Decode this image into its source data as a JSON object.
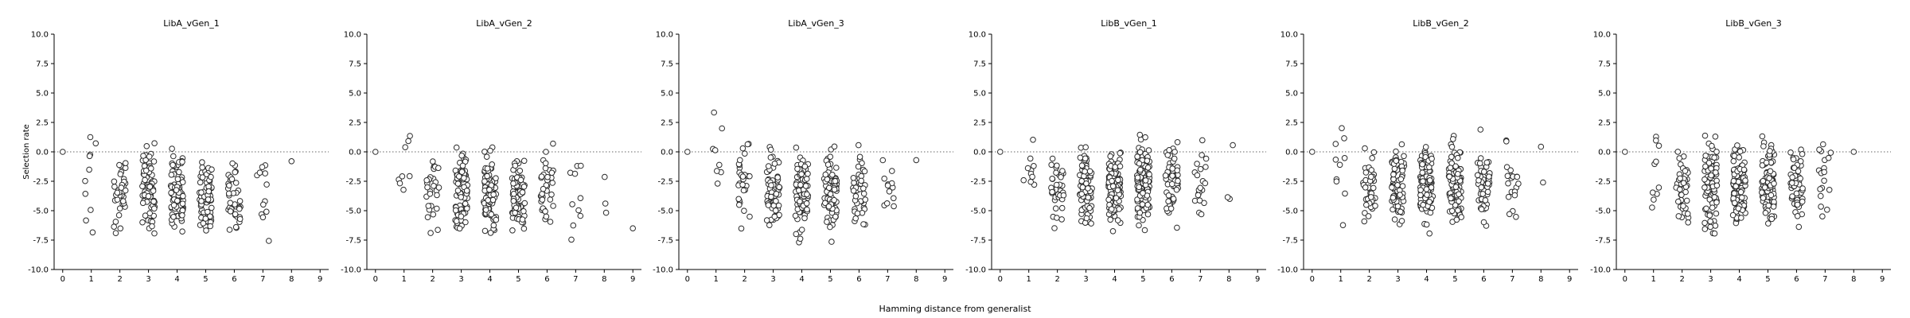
{
  "figure": {
    "xlabel": "Hamming distance from generalist",
    "ylabel": "Selection rate"
  },
  "chart_data": [
    {
      "type": "scatter",
      "title": "LibA_vGen_1",
      "xlim": [
        -0.3,
        9.3
      ],
      "ylim": [
        -10,
        10
      ],
      "xticks": [
        "0",
        "1",
        "2",
        "3",
        "4",
        "5",
        "6",
        "7",
        "8",
        "9"
      ],
      "yticks": [
        "10.0",
        "7.5",
        "5.0",
        "2.5",
        "0.0",
        "-2.5",
        "-5.0",
        "-7.5",
        "-10.0"
      ],
      "reference_line_y": 0,
      "jitter": 0.22,
      "groups": [
        {
          "x": 0,
          "n": 1,
          "y_center": 0.0,
          "y_spread": 0.0
        },
        {
          "x": 1,
          "n": 10,
          "y_center": -2.5,
          "y_spread": 3.8
        },
        {
          "x": 2,
          "n": 35,
          "y_center": -3.5,
          "y_spread": 2.4
        },
        {
          "x": 3,
          "n": 75,
          "y_center": -3.2,
          "y_spread": 2.6
        },
        {
          "x": 4,
          "n": 95,
          "y_center": -3.5,
          "y_spread": 2.5
        },
        {
          "x": 5,
          "n": 80,
          "y_center": -4.0,
          "y_spread": 2.4
        },
        {
          "x": 6,
          "n": 40,
          "y_center": -4.0,
          "y_spread": 2.6
        },
        {
          "x": 7,
          "n": 12,
          "y_center": -3.5,
          "y_spread": 3.0
        },
        {
          "x": 8,
          "n": 1,
          "y_center": -0.8,
          "y_spread": 0.0
        }
      ]
    },
    {
      "type": "scatter",
      "title": "LibA_vGen_2",
      "xlim": [
        -0.3,
        9.3
      ],
      "ylim": [
        -10,
        10
      ],
      "xticks": [
        "0",
        "1",
        "2",
        "3",
        "4",
        "5",
        "6",
        "7",
        "8",
        "9"
      ],
      "yticks": [
        "10.0",
        "7.5",
        "5.0",
        "2.5",
        "0.0",
        "-2.5",
        "-5.0",
        "-7.5",
        "-10.0"
      ],
      "reference_line_y": 0,
      "jitter": 0.22,
      "groups": [
        {
          "x": 0,
          "n": 1,
          "y_center": 0.0,
          "y_spread": 0.0
        },
        {
          "x": 1,
          "n": 8,
          "y_center": -1.5,
          "y_spread": 3.6
        },
        {
          "x": 2,
          "n": 30,
          "y_center": -3.5,
          "y_spread": 2.5
        },
        {
          "x": 3,
          "n": 80,
          "y_center": -3.4,
          "y_spread": 2.6
        },
        {
          "x": 4,
          "n": 95,
          "y_center": -3.6,
          "y_spread": 2.5
        },
        {
          "x": 5,
          "n": 70,
          "y_center": -3.8,
          "y_spread": 2.4
        },
        {
          "x": 6,
          "n": 35,
          "y_center": -3.2,
          "y_spread": 2.6
        },
        {
          "x": 7,
          "n": 10,
          "y_center": -3.5,
          "y_spread": 3.0
        },
        {
          "x": 8,
          "n": 3,
          "y_center": -3.0,
          "y_spread": 2.5
        },
        {
          "x": 9,
          "n": 1,
          "y_center": -6.5,
          "y_spread": 0.0
        }
      ]
    },
    {
      "type": "scatter",
      "title": "LibA_vGen_3",
      "xlim": [
        -0.3,
        9.3
      ],
      "ylim": [
        -10,
        10
      ],
      "xticks": [
        "0",
        "1",
        "2",
        "3",
        "4",
        "5",
        "6",
        "7",
        "8",
        "9"
      ],
      "yticks": [
        "10.0",
        "7.5",
        "5.0",
        "2.5",
        "0.0",
        "-2.5",
        "-5.0",
        "-7.5",
        "-10.0"
      ],
      "reference_line_y": 0,
      "jitter": 0.22,
      "groups": [
        {
          "x": 0,
          "n": 1,
          "y_center": 0.0,
          "y_spread": 0.0
        },
        {
          "x": 1,
          "n": 8,
          "y_center": -1.0,
          "y_spread": 3.5
        },
        {
          "x": 2,
          "n": 30,
          "y_center": -2.5,
          "y_spread": 2.8
        },
        {
          "x": 3,
          "n": 70,
          "y_center": -3.3,
          "y_spread": 2.6
        },
        {
          "x": 4,
          "n": 100,
          "y_center": -3.6,
          "y_spread": 2.5
        },
        {
          "x": 5,
          "n": 80,
          "y_center": -3.3,
          "y_spread": 2.6
        },
        {
          "x": 6,
          "n": 40,
          "y_center": -3.3,
          "y_spread": 2.7
        },
        {
          "x": 7,
          "n": 12,
          "y_center": -3.0,
          "y_spread": 3.0
        },
        {
          "x": 8,
          "n": 1,
          "y_center": -0.7,
          "y_spread": 0.0
        }
      ]
    },
    {
      "type": "scatter",
      "title": "LibB_vGen_1",
      "xlim": [
        -0.3,
        9.3
      ],
      "ylim": [
        -10,
        10
      ],
      "xticks": [
        "0",
        "1",
        "2",
        "3",
        "4",
        "5",
        "6",
        "7",
        "8",
        "9"
      ],
      "yticks": [
        "10.0",
        "7.5",
        "5.0",
        "2.5",
        "0.0",
        "-2.5",
        "-5.0",
        "-7.5",
        "-10.0"
      ],
      "reference_line_y": 0,
      "jitter": 0.22,
      "groups": [
        {
          "x": 0,
          "n": 1,
          "y_center": 0.0,
          "y_spread": 0.0
        },
        {
          "x": 1,
          "n": 10,
          "y_center": -2.0,
          "y_spread": 3.5
        },
        {
          "x": 2,
          "n": 40,
          "y_center": -2.8,
          "y_spread": 2.6
        },
        {
          "x": 3,
          "n": 80,
          "y_center": -2.8,
          "y_spread": 2.6
        },
        {
          "x": 4,
          "n": 105,
          "y_center": -3.0,
          "y_spread": 2.5
        },
        {
          "x": 5,
          "n": 100,
          "y_center": -2.8,
          "y_spread": 2.6
        },
        {
          "x": 6,
          "n": 55,
          "y_center": -2.5,
          "y_spread": 2.6
        },
        {
          "x": 7,
          "n": 22,
          "y_center": -2.5,
          "y_spread": 2.6
        },
        {
          "x": 8,
          "n": 3,
          "y_center": -3.0,
          "y_spread": 2.5
        }
      ]
    },
    {
      "type": "scatter",
      "title": "LibB_vGen_2",
      "xlim": [
        -0.3,
        9.3
      ],
      "ylim": [
        -10,
        10
      ],
      "xticks": [
        "0",
        "1",
        "2",
        "3",
        "4",
        "5",
        "6",
        "7",
        "8",
        "9"
      ],
      "yticks": [
        "10.0",
        "7.5",
        "5.0",
        "2.5",
        "0.0",
        "-2.5",
        "-5.0",
        "-7.5",
        "-10.0"
      ],
      "reference_line_y": 0,
      "jitter": 0.22,
      "groups": [
        {
          "x": 0,
          "n": 1,
          "y_center": 0.0,
          "y_spread": 0.0
        },
        {
          "x": 1,
          "n": 10,
          "y_center": -2.0,
          "y_spread": 3.5
        },
        {
          "x": 2,
          "n": 40,
          "y_center": -2.8,
          "y_spread": 2.6
        },
        {
          "x": 3,
          "n": 85,
          "y_center": -2.8,
          "y_spread": 2.6
        },
        {
          "x": 4,
          "n": 110,
          "y_center": -3.0,
          "y_spread": 2.5
        },
        {
          "x": 5,
          "n": 100,
          "y_center": -2.8,
          "y_spread": 2.6
        },
        {
          "x": 6,
          "n": 55,
          "y_center": -2.7,
          "y_spread": 2.6
        },
        {
          "x": 7,
          "n": 20,
          "y_center": -2.5,
          "y_spread": 2.6
        },
        {
          "x": 8,
          "n": 2,
          "y_center": -2.0,
          "y_spread": 2.5
        }
      ]
    },
    {
      "type": "scatter",
      "title": "LibB_vGen_3",
      "xlim": [
        -0.3,
        9.3
      ],
      "ylim": [
        -10,
        10
      ],
      "xticks": [
        "0",
        "1",
        "2",
        "3",
        "4",
        "5",
        "6",
        "7",
        "8",
        "9"
      ],
      "yticks": [
        "10.0",
        "7.5",
        "5.0",
        "2.5",
        "0.0",
        "-2.5",
        "-5.0",
        "-7.5",
        "-10.0"
      ],
      "reference_line_y": 0,
      "jitter": 0.22,
      "groups": [
        {
          "x": 0,
          "n": 1,
          "y_center": 0.0,
          "y_spread": 0.0
        },
        {
          "x": 1,
          "n": 10,
          "y_center": -2.0,
          "y_spread": 3.5
        },
        {
          "x": 2,
          "n": 45,
          "y_center": -2.8,
          "y_spread": 2.6
        },
        {
          "x": 3,
          "n": 85,
          "y_center": -2.8,
          "y_spread": 2.6
        },
        {
          "x": 4,
          "n": 110,
          "y_center": -3.0,
          "y_spread": 2.5
        },
        {
          "x": 5,
          "n": 100,
          "y_center": -2.8,
          "y_spread": 2.6
        },
        {
          "x": 6,
          "n": 55,
          "y_center": -2.8,
          "y_spread": 2.6
        },
        {
          "x": 7,
          "n": 18,
          "y_center": -2.5,
          "y_spread": 2.6
        },
        {
          "x": 8,
          "n": 1,
          "y_center": 0.0,
          "y_spread": 0.0
        }
      ]
    }
  ]
}
